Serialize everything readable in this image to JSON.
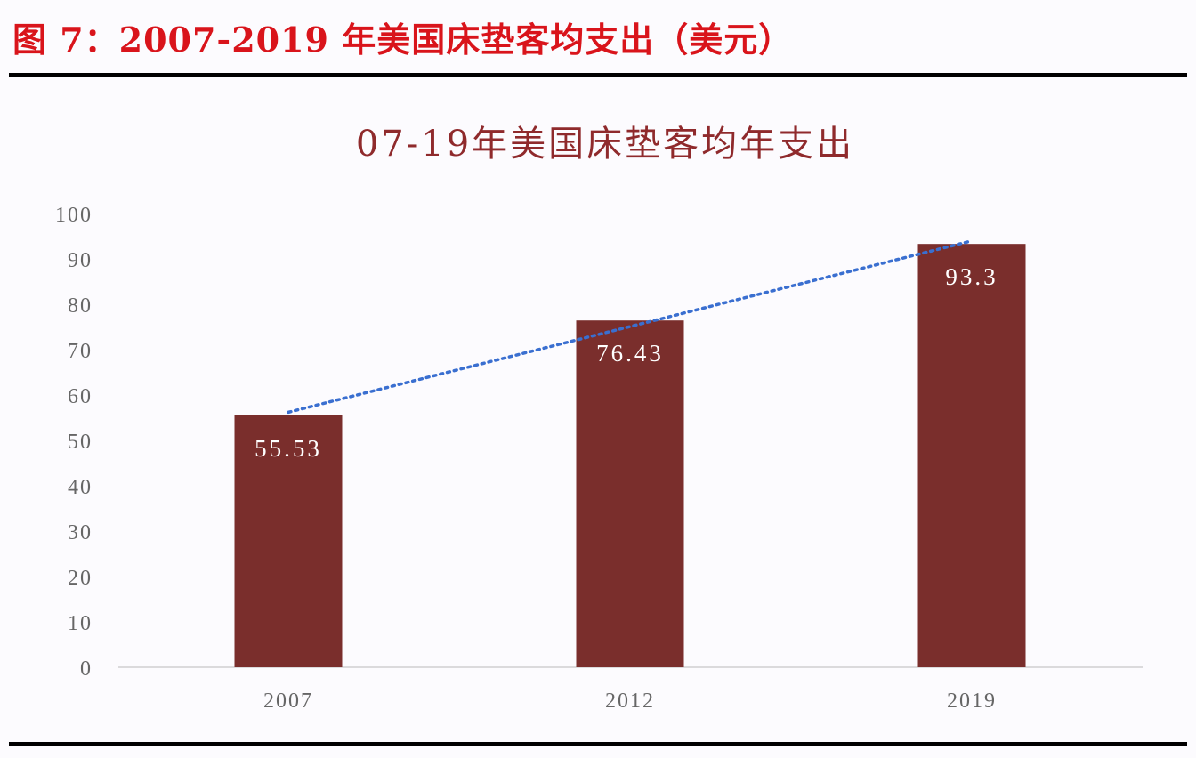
{
  "figure_title": "图 7：2007-2019 年美国床垫客均支出（美元）",
  "chart_data": {
    "type": "bar",
    "title": "07-19年美国床垫客均年支出",
    "categories": [
      "2007",
      "2012",
      "2019"
    ],
    "values": [
      55.53,
      76.43,
      93.3
    ],
    "data_labels": [
      "55.53",
      "76.43",
      "93.3"
    ],
    "xlabel": "",
    "ylabel": "",
    "ylim": [
      0,
      100
    ],
    "yticks": [
      0,
      10,
      20,
      30,
      40,
      50,
      60,
      70,
      80,
      90,
      100
    ],
    "grid": false,
    "legend": "none",
    "trendline": {
      "type": "linear",
      "style": "dotted",
      "color": "#3a6fd0"
    },
    "colors": {
      "bar": "#7a2e2c",
      "title": "#8f2a2c",
      "figure_title": "#d9141b"
    }
  }
}
